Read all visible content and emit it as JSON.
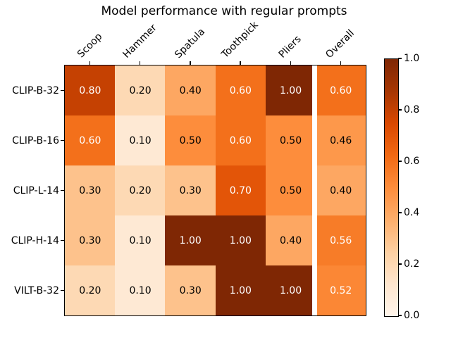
{
  "chart_data": {
    "type": "heatmap",
    "title": "Model performance with regular prompts",
    "columns": [
      "Scoop",
      "Hammer",
      "Spatula",
      "Toothpick",
      "Pliers",
      "Overall"
    ],
    "rows": [
      "CLIP-B-32",
      "CLIP-B-16",
      "CLIP-L-14",
      "CLIP-H-14",
      "VILT-B-32"
    ],
    "values": [
      [
        0.8,
        0.2,
        0.4,
        0.6,
        1.0,
        0.6
      ],
      [
        0.6,
        0.1,
        0.5,
        0.6,
        0.5,
        0.46
      ],
      [
        0.3,
        0.2,
        0.3,
        0.7,
        0.5,
        0.4
      ],
      [
        0.3,
        0.1,
        1.0,
        1.0,
        0.4,
        0.56
      ],
      [
        0.2,
        0.1,
        0.3,
        1.0,
        1.0,
        0.52
      ]
    ],
    "value_decimals": 2,
    "colormap": "Oranges",
    "colormap_stops": [
      "#fff5eb",
      "#fee6ce",
      "#fdd0a2",
      "#fdae6b",
      "#fd8d3c",
      "#f16913",
      "#d94801",
      "#a63603",
      "#7f2704"
    ],
    "vmin": 0.0,
    "vmax": 1.0,
    "text_color_light": "#ffffff",
    "text_color_dark": "#000000",
    "text_color_threshold": 0.5,
    "separator_after_column_index": 4,
    "xtick_rotation_deg": 45,
    "grid": false,
    "colorbar": {
      "position": "right",
      "tick_values": [
        0.0,
        0.2,
        0.4,
        0.6,
        0.8,
        1.0
      ],
      "tick_labels": [
        "0.0",
        "0.2",
        "0.4",
        "0.6",
        "0.8",
        "1.0"
      ]
    },
    "background_color": "#ffffff"
  }
}
